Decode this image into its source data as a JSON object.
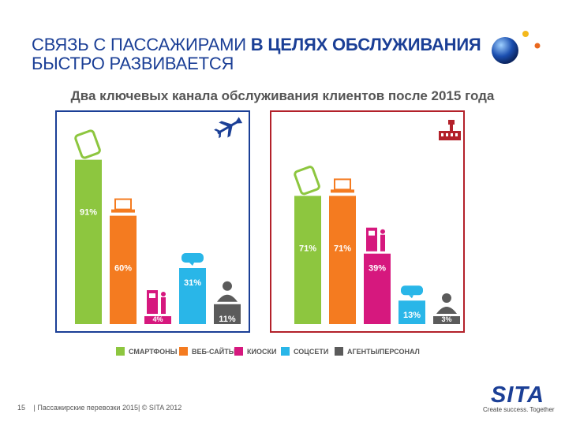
{
  "header": {
    "title_line1_normal": "СВЯЗЬ С ПАССАЖИРАМИ ",
    "title_line1_bold": "В ЦЕЛЯХ ОБСЛУЖИВАНИЯ",
    "title_line2": "БЫСТРО РАЗВИВАЕТСЯ",
    "subtitle": "Два ключевых канала обслуживания клиентов после 2015 года"
  },
  "colors": {
    "smartphones": "#8dc63f",
    "websites": "#f47b20",
    "kiosks": "#d6187e",
    "social": "#29b6e8",
    "agents": "#5b5b5b",
    "airline_border": "#1b3f96",
    "airport_border": "#b3212a"
  },
  "icons": {
    "airline": "airplane-icon",
    "airport": "airport-tower-icon",
    "smartphone": "smartphone-icon",
    "laptop": "laptop-icon",
    "kiosk": "kiosk-icon",
    "social": "speech-bubble-icon",
    "agent": "person-icon"
  },
  "chart_data": [
    {
      "type": "bar",
      "name": "airline",
      "categories": [
        "СМАРТФОНЫ",
        "ВЕБ-САЙТЫ",
        "КИОСКИ",
        "СОЦСЕТИ",
        "АГЕНТЫ/ПЕРСОНАЛ"
      ],
      "values": [
        91,
        60,
        4,
        31,
        11
      ],
      "labels": [
        "91%",
        "60%",
        "4%",
        "31%",
        "11%"
      ],
      "ylim": [
        0,
        100
      ]
    },
    {
      "type": "bar",
      "name": "airport",
      "categories": [
        "СМАРТФОНЫ",
        "ВЕБ-САЙТЫ",
        "КИОСКИ",
        "СОЦСЕТИ",
        "АГЕНТЫ/ПЕРСОНАЛ"
      ],
      "values": [
        71,
        71,
        39,
        13,
        3
      ],
      "labels": [
        "71%",
        "71%",
        "39%",
        "13%",
        "3%"
      ],
      "ylim": [
        0,
        100
      ]
    }
  ],
  "legend": [
    "СМАРТФОНЫ",
    "ВЕБ-САЙТЫ",
    "КИОСКИ",
    "СОЦСЕТИ",
    "АГЕНТЫ/ПЕРСОНАЛ"
  ],
  "footer": {
    "page_number": "15",
    "text": "| Пассажирские перевозки 2015| © SITA 2012"
  },
  "logo": {
    "name": "SITA",
    "tagline": "Create success. Together"
  }
}
